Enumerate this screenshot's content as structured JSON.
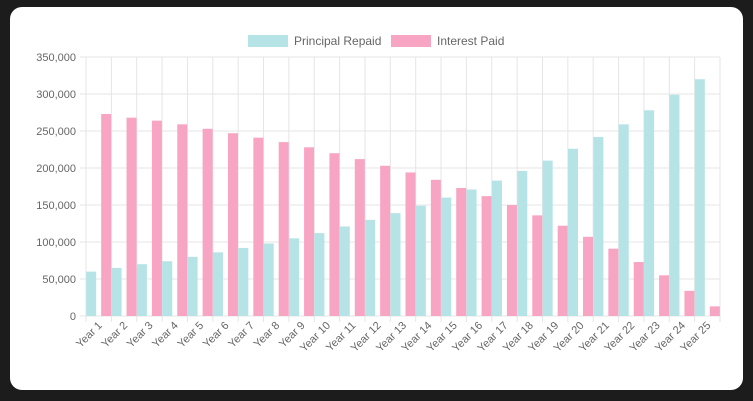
{
  "chart_data": {
    "type": "bar",
    "categories": [
      "Year 1",
      "Year 2",
      "Year 3",
      "Year 4",
      "Year 5",
      "Year 6",
      "Year 7",
      "Year 8",
      "Year 9",
      "Year 10",
      "Year 11",
      "Year 12",
      "Year 13",
      "Year 14",
      "Year 15",
      "Year 16",
      "Year 17",
      "Year 18",
      "Year 19",
      "Year 20",
      "Year 21",
      "Year 22",
      "Year 23",
      "Year 24",
      "Year 25"
    ],
    "series": [
      {
        "name": "Principal Repaid",
        "color": "#b6e4e6",
        "values": [
          60000,
          65000,
          70000,
          74000,
          80000,
          86000,
          92000,
          98000,
          105000,
          112000,
          121000,
          130000,
          139000,
          149000,
          160000,
          171000,
          183000,
          196000,
          210000,
          226000,
          242000,
          259000,
          278000,
          299000,
          320000
        ]
      },
      {
        "name": "Interest Paid",
        "color": "#f7a5c3",
        "values": [
          273000,
          268000,
          264000,
          259000,
          253000,
          247000,
          241000,
          235000,
          228000,
          220000,
          212000,
          203000,
          194000,
          184000,
          173000,
          162000,
          150000,
          136000,
          122000,
          107000,
          91000,
          73000,
          55000,
          34000,
          13000
        ]
      }
    ],
    "ylim": [
      0,
      350000
    ],
    "yticks": [
      0,
      50000,
      100000,
      150000,
      200000,
      250000,
      300000,
      350000
    ],
    "ytick_labels": [
      "0",
      "50,000",
      "100,000",
      "150,000",
      "200,000",
      "250,000",
      "300,000",
      "350,000"
    ],
    "grid": true,
    "legend_position": "top"
  }
}
